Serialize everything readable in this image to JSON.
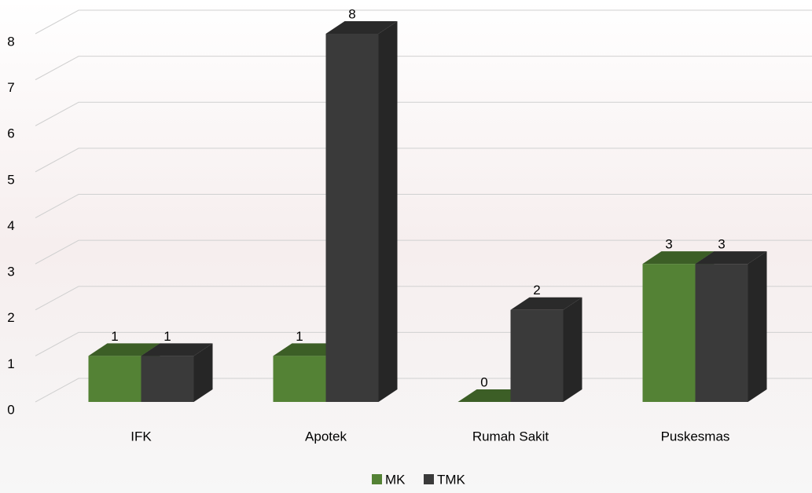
{
  "chart_data": {
    "type": "bar3d",
    "categories": [
      "IFK",
      "Apotek",
      "Rumah Sakit",
      "Puskesmas"
    ],
    "series": [
      {
        "name": "MK",
        "color": "#548235",
        "values": [
          1,
          1,
          0,
          3
        ]
      },
      {
        "name": "TMK",
        "color": "#3a3a3a",
        "values": [
          1,
          8,
          2,
          3
        ]
      }
    ],
    "ylim": [
      0,
      8
    ],
    "yticks": [
      0,
      1,
      2,
      3,
      4,
      5,
      6,
      7,
      8
    ],
    "grid": true,
    "legend": "bottom"
  }
}
